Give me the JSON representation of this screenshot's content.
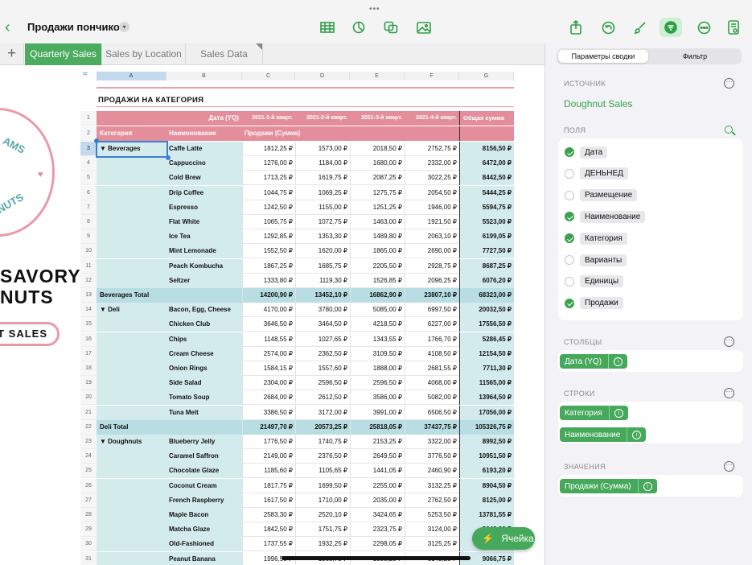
{
  "toolbar": {
    "doc_title": "Продажи пончиков"
  },
  "tabs": [
    {
      "label": "Quarterly Sales",
      "active": true
    },
    {
      "label": "Sales by Location",
      "active": false
    },
    {
      "label": "Sales Data",
      "active": false
    }
  ],
  "art": {
    "logo_top": "AMS",
    "logo_bottom": "NUTS",
    "line1": "SAVORY",
    "line2": "NUTS",
    "button": "T SALES"
  },
  "sheet": {
    "columns": [
      "A",
      "B",
      "C",
      "D",
      "E",
      "F",
      "G"
    ],
    "title": "ПРОДАЖИ НА КАТЕГОРИЯ",
    "header1": [
      "Дата (YQ)",
      "2021-1-й кварт.",
      "2021-2-й кварт.",
      "2021-3-й кварт.",
      "2021-4-й кварт.",
      "Общая сумма"
    ],
    "header2": [
      "Категория",
      "Наименование",
      "Продажи (Сумма)"
    ],
    "rows": [
      {
        "n": "3",
        "cat": "▼  Beverages",
        "name": "Caffe Latte",
        "v": [
          "1812,25 ₽",
          "1573,00 ₽",
          "2018,50 ₽",
          "2752,75 ₽",
          "8156,50 ₽"
        ]
      },
      {
        "n": "4",
        "cat": "",
        "name": "Cappuccino",
        "v": [
          "1276,00 ₽",
          "1184,00 ₽",
          "1680,00 ₽",
          "2332,00 ₽",
          "6472,00 ₽"
        ]
      },
      {
        "n": "5",
        "cat": "",
        "name": "Cold Brew",
        "v": [
          "1713,25 ₽",
          "1619,75 ₽",
          "2087,25 ₽",
          "3022,25 ₽",
          "8442,50 ₽"
        ]
      },
      {
        "n": "6",
        "cat": "",
        "name": "Drip Coffee",
        "v": [
          "1044,75 ₽",
          "1069,25 ₽",
          "1275,75 ₽",
          "2054,50 ₽",
          "5444,25 ₽"
        ]
      },
      {
        "n": "7",
        "cat": "",
        "name": "Espresso",
        "v": [
          "1242,50 ₽",
          "1155,00 ₽",
          "1251,25 ₽",
          "1946,00 ₽",
          "5594,75 ₽"
        ]
      },
      {
        "n": "8",
        "cat": "",
        "name": "Flat White",
        "v": [
          "1065,75 ₽",
          "1072,75 ₽",
          "1463,00 ₽",
          "1921,50 ₽",
          "5523,00 ₽"
        ]
      },
      {
        "n": "9",
        "cat": "",
        "name": "Ice Tea",
        "v": [
          "1292,85 ₽",
          "1353,30 ₽",
          "1489,80 ₽",
          "2063,10 ₽",
          "6199,05 ₽"
        ]
      },
      {
        "n": "10",
        "cat": "",
        "name": "Mint Lemonade",
        "v": [
          "1552,50 ₽",
          "1620,00 ₽",
          "1865,00 ₽",
          "2690,00 ₽",
          "7727,50 ₽"
        ]
      },
      {
        "n": "11",
        "cat": "",
        "name": "Peach Kombucha",
        "v": [
          "1867,25 ₽",
          "1685,75 ₽",
          "2205,50 ₽",
          "2928,75 ₽",
          "8687,25 ₽"
        ]
      },
      {
        "n": "12",
        "cat": "",
        "name": "Seltzer",
        "v": [
          "1333,80 ₽",
          "1119,30 ₽",
          "1526,85 ₽",
          "2096,25 ₽",
          "6076,20 ₽"
        ]
      },
      {
        "n": "13",
        "total": true,
        "cat": "Beverages Total",
        "name": "",
        "v": [
          "14200,90 ₽",
          "13452,10 ₽",
          "16862,90 ₽",
          "23807,10 ₽",
          "68323,00 ₽"
        ]
      },
      {
        "n": "14",
        "cat": "▼  Deli",
        "name": "Bacon, Egg, Cheese",
        "v": [
          "4170,00 ₽",
          "3780,00 ₽",
          "5085,00 ₽",
          "6997,50 ₽",
          "20032,50 ₽"
        ]
      },
      {
        "n": "15",
        "cat": "",
        "name": "Chicken Club",
        "v": [
          "3646,50 ₽",
          "3464,50 ₽",
          "4218,50 ₽",
          "6227,00 ₽",
          "17556,50 ₽"
        ]
      },
      {
        "n": "16",
        "cat": "",
        "name": "Chips",
        "v": [
          "1148,55 ₽",
          "1027,65 ₽",
          "1343,55 ₽",
          "1766,70 ₽",
          "5286,45 ₽"
        ]
      },
      {
        "n": "17",
        "cat": "",
        "name": "Cream Cheese",
        "v": [
          "2574,00 ₽",
          "2362,50 ₽",
          "3109,50 ₽",
          "4108,50 ₽",
          "12154,50 ₽"
        ]
      },
      {
        "n": "18",
        "cat": "",
        "name": "Onion Rings",
        "v": [
          "1584,15 ₽",
          "1557,60 ₽",
          "1888,00 ₽",
          "2681,55 ₽",
          "7711,30 ₽"
        ]
      },
      {
        "n": "19",
        "cat": "",
        "name": "Side Salad",
        "v": [
          "2304,00 ₽",
          "2596,50 ₽",
          "2596,50 ₽",
          "4068,00 ₽",
          "11565,00 ₽"
        ]
      },
      {
        "n": "20",
        "cat": "",
        "name": "Tomato Soup",
        "v": [
          "2684,00 ₽",
          "2612,50 ₽",
          "3586,00 ₽",
          "5082,00 ₽",
          "13964,50 ₽"
        ]
      },
      {
        "n": "21",
        "cat": "",
        "name": "Tuna Melt",
        "v": [
          "3386,50 ₽",
          "3172,00 ₽",
          "3991,00 ₽",
          "6506,50 ₽",
          "17056,00 ₽"
        ]
      },
      {
        "n": "22",
        "total": true,
        "cat": "Deli Total",
        "name": "",
        "v": [
          "21497,70 ₽",
          "20573,25 ₽",
          "25818,05 ₽",
          "37437,75 ₽",
          "105326,75 ₽"
        ]
      },
      {
        "n": "23",
        "cat": "▼  Doughnuts",
        "name": "Blueberry Jelly",
        "v": [
          "1776,50 ₽",
          "1740,75 ₽",
          "2153,25 ₽",
          "3322,00 ₽",
          "8992,50 ₽"
        ]
      },
      {
        "n": "24",
        "cat": "",
        "name": "Caramel Saffron",
        "v": [
          "2149,00 ₽",
          "2376,50 ₽",
          "2649,50 ₽",
          "3776,50 ₽",
          "10951,50 ₽"
        ]
      },
      {
        "n": "25",
        "cat": "",
        "name": "Chocolate Glaze",
        "v": [
          "1185,60 ₽",
          "1105,65 ₽",
          "1441,05 ₽",
          "2460,90 ₽",
          "6193,20 ₽"
        ]
      },
      {
        "n": "26",
        "cat": "",
        "name": "Coconut Cream",
        "v": [
          "1817,75 ₽",
          "1699,50 ₽",
          "2255,00 ₽",
          "3132,25 ₽",
          "8904,50 ₽"
        ]
      },
      {
        "n": "27",
        "cat": "",
        "name": "French Raspberry",
        "v": [
          "1617,50 ₽",
          "1710,00 ₽",
          "2035,00 ₽",
          "2762,50 ₽",
          "8125,00 ₽"
        ]
      },
      {
        "n": "28",
        "cat": "",
        "name": "Maple Bacon",
        "v": [
          "2583,30 ₽",
          "2520,10 ₽",
          "3424,65 ₽",
          "5253,50 ₽",
          "13781,55 ₽"
        ]
      },
      {
        "n": "29",
        "cat": "",
        "name": "Matcha Glaze",
        "v": [
          "1842,50 ₽",
          "1751,75 ₽",
          "2323,75 ₽",
          "3124,00 ₽",
          "9042,00 ₽"
        ]
      },
      {
        "n": "30",
        "cat": "",
        "name": "Old-Fashioned",
        "v": [
          "1737,55 ₽",
          "1932,25 ₽",
          "2298,05 ₽",
          "3125,25 ₽",
          "9093,10 ₽"
        ]
      },
      {
        "n": "31",
        "cat": "",
        "name": "Peanut Banana",
        "v": [
          "1996,50 ₽",
          "1968,75 ₽",
          "1958,25 ₽",
          "3143,25 ₽",
          "9066,75 ₽"
        ]
      }
    ]
  },
  "fab": {
    "label": "Ячейка"
  },
  "panel": {
    "seg_pivot": "Параметры сводки",
    "seg_filter": "Фильтр",
    "source_head": "ИСТОЧНИК",
    "source_name": "Doughnut Sales",
    "fields_head": "ПОЛЯ",
    "fields": [
      {
        "label": "Дата",
        "on": true
      },
      {
        "label": "ДЕНЬНЕД",
        "on": false
      },
      {
        "label": "Размещение",
        "on": false
      },
      {
        "label": "Наименование",
        "on": true
      },
      {
        "label": "Категория",
        "on": true
      },
      {
        "label": "Варианты",
        "on": false
      },
      {
        "label": "Единицы",
        "on": false
      },
      {
        "label": "Продажи",
        "on": true
      }
    ],
    "columns_head": "СТОЛБЦЫ",
    "columns": [
      "Дата (YQ)"
    ],
    "rows_head": "СТРОКИ",
    "rows": [
      "Категория",
      "Наименование"
    ],
    "values_head": "ЗНАЧЕНИЯ",
    "values": [
      "Продажи (Сумма)"
    ]
  }
}
